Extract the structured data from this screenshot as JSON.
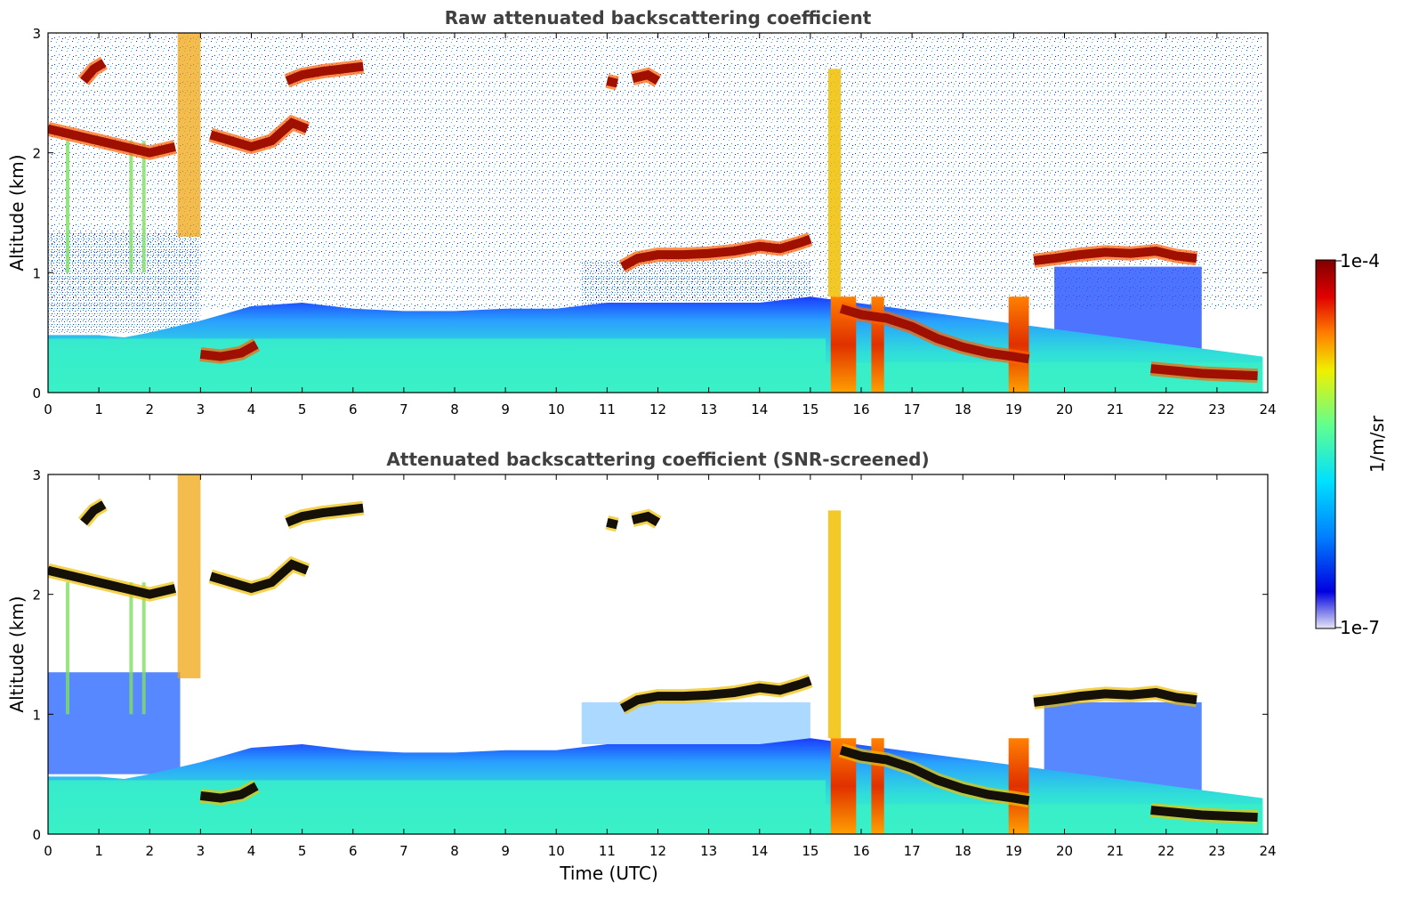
{
  "chart_data": [
    {
      "type": "heatmap",
      "title": "Raw attenuated backscattering coefficient",
      "xlabel": "",
      "ylabel": "Altitude (km)",
      "xlim": [
        0,
        24
      ],
      "ylim": [
        0,
        3
      ],
      "xticks": [
        "0",
        "1",
        "2",
        "3",
        "4",
        "5",
        "6",
        "7",
        "8",
        "9",
        "10",
        "11",
        "12",
        "13",
        "14",
        "15",
        "16",
        "17",
        "18",
        "19",
        "20",
        "21",
        "22",
        "23",
        "24"
      ],
      "yticks": [
        "0",
        "1",
        "2",
        "3"
      ],
      "screened": false
    },
    {
      "type": "heatmap",
      "title": "Attenuated backscattering coefficient (SNR-screened)",
      "xlabel": "Time (UTC)",
      "ylabel": "Altitude (km)",
      "xlim": [
        0,
        24
      ],
      "ylim": [
        0,
        3
      ],
      "xticks": [
        "0",
        "1",
        "2",
        "3",
        "4",
        "5",
        "6",
        "7",
        "8",
        "9",
        "10",
        "11",
        "12",
        "13",
        "14",
        "15",
        "16",
        "17",
        "18",
        "19",
        "20",
        "21",
        "22",
        "23",
        "24"
      ],
      "yticks": [
        "0",
        "1",
        "2",
        "3"
      ],
      "screened": true
    }
  ],
  "colorbar": {
    "label": "1/m/sr",
    "max_label": "1e-4",
    "min_label": "1e-7",
    "scale": "log",
    "colormap": [
      "#e6e6f5",
      "#0000e0",
      "#0080ff",
      "#00e0ff",
      "#60ff90",
      "#f0f000",
      "#ff8000",
      "#e00000",
      "#800000"
    ]
  },
  "layers": {
    "cloud_bands": [
      {
        "t": [
          0.0,
          0.5,
          1.0,
          1.5,
          2.0,
          2.5
        ],
        "h": [
          2.2,
          2.15,
          2.1,
          2.05,
          2.0,
          2.05
        ]
      },
      {
        "t": [
          3.2,
          3.6,
          4.0,
          4.4,
          4.8,
          5.1
        ],
        "h": [
          2.15,
          2.1,
          2.05,
          2.1,
          2.25,
          2.2
        ]
      },
      {
        "t": [
          4.7,
          5.0,
          5.4,
          5.8,
          6.2
        ],
        "h": [
          2.6,
          2.65,
          2.68,
          2.7,
          2.72
        ]
      },
      {
        "t": [
          0.7,
          0.9,
          1.1
        ],
        "h": [
          2.6,
          2.7,
          2.75
        ]
      },
      {
        "t": [
          11.3,
          11.6,
          12.0,
          12.5,
          13.0,
          13.5,
          14.0,
          14.4,
          14.8,
          15.0
        ],
        "h": [
          1.05,
          1.12,
          1.15,
          1.15,
          1.16,
          1.18,
          1.22,
          1.2,
          1.25,
          1.28
        ]
      },
      {
        "t": [
          15.6,
          16.0,
          16.5,
          17.0,
          17.5,
          18.0,
          18.5,
          19.0,
          19.3
        ],
        "h": [
          0.7,
          0.65,
          0.62,
          0.55,
          0.45,
          0.38,
          0.33,
          0.3,
          0.28
        ]
      },
      {
        "t": [
          19.4,
          19.8,
          20.3,
          20.8,
          21.3,
          21.8,
          22.2,
          22.6
        ],
        "h": [
          1.1,
          1.12,
          1.15,
          1.17,
          1.16,
          1.18,
          1.14,
          1.12
        ]
      },
      {
        "t": [
          21.7,
          22.2,
          22.7,
          23.2,
          23.8
        ],
        "h": [
          0.2,
          0.18,
          0.16,
          0.15,
          0.14
        ]
      },
      {
        "t": [
          3.0,
          3.4,
          3.8,
          4.1
        ],
        "h": [
          0.32,
          0.3,
          0.33,
          0.4
        ]
      },
      {
        "t": [
          11.0,
          11.2
        ],
        "h": [
          2.6,
          2.58
        ]
      },
      {
        "t": [
          11.5,
          11.8,
          12.0
        ],
        "h": [
          2.62,
          2.65,
          2.6
        ]
      }
    ],
    "boundary_layer_top": {
      "t": [
        0,
        1,
        1.5,
        2,
        2.5,
        3,
        4,
        5,
        6,
        7,
        8,
        9,
        10,
        11,
        12,
        13,
        14,
        15
      ],
      "h": [
        0.48,
        0.48,
        0.46,
        0.5,
        0.55,
        0.6,
        0.72,
        0.75,
        0.7,
        0.68,
        0.68,
        0.7,
        0.7,
        0.75,
        0.75,
        0.75,
        0.75,
        0.8
      ]
    }
  }
}
